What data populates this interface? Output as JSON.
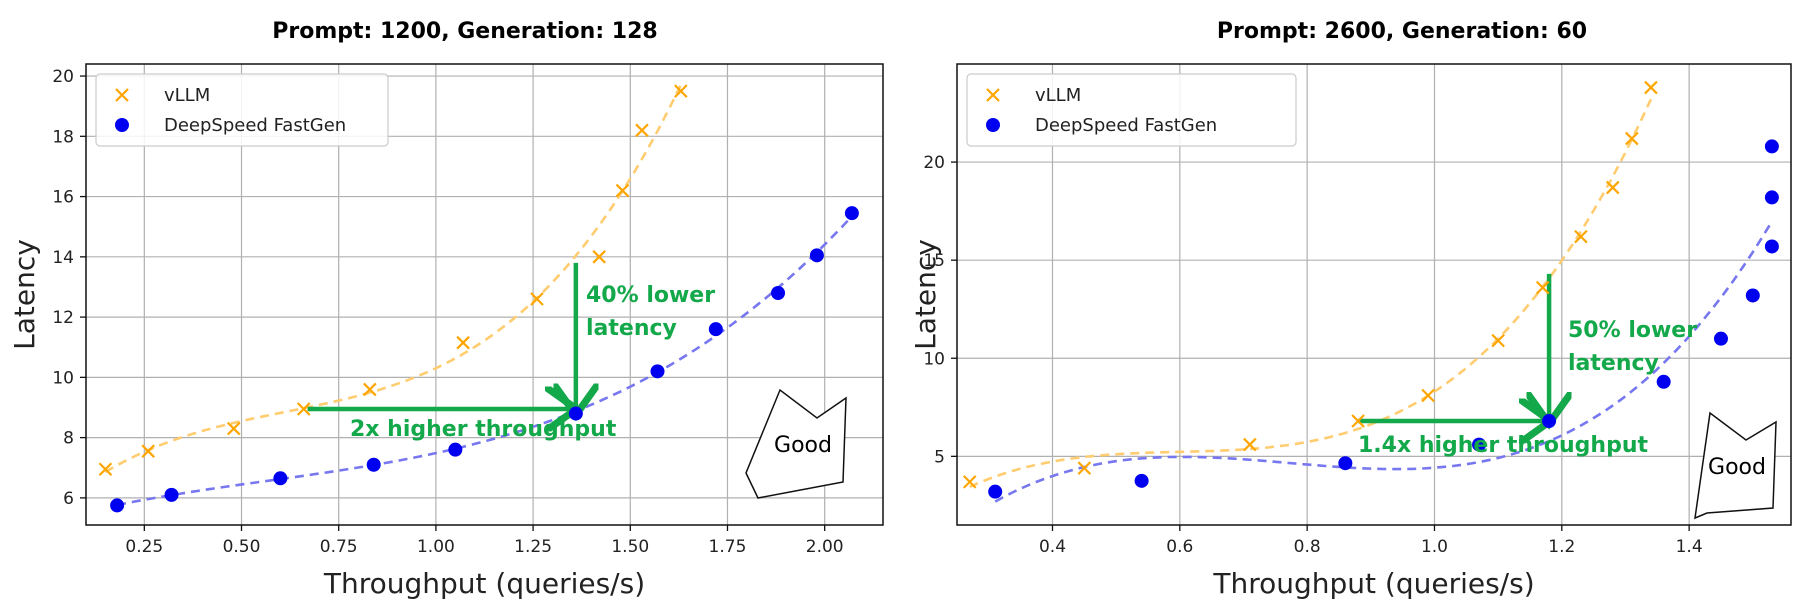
{
  "chart_data": [
    {
      "type": "scatter",
      "title": "Prompt: 1200, Generation: 128",
      "xlabel": "Throughput (queries/s)",
      "ylabel": "Latency",
      "xlim": [
        0.1,
        2.15
      ],
      "ylim": [
        5.1,
        20.4
      ],
      "xticks": [
        0.25,
        0.5,
        0.75,
        1.0,
        1.25,
        1.5,
        1.75,
        2.0
      ],
      "xtick_labels": [
        "0.25",
        "0.50",
        "0.75",
        "1.00",
        "1.25",
        "1.50",
        "1.75",
        "2.00"
      ],
      "yticks": [
        6,
        8,
        10,
        12,
        14,
        16,
        18,
        20
      ],
      "ytick_labels": [
        "6",
        "8",
        "10",
        "12",
        "14",
        "16",
        "18",
        "20"
      ],
      "grid": true,
      "legend": "top-left",
      "series": [
        {
          "name": "vLLM",
          "marker": "x",
          "color": "#FFA500",
          "fit_color": "#FFCC70",
          "x": [
            0.15,
            0.26,
            0.48,
            0.66,
            0.83,
            1.07,
            1.26,
            1.42,
            1.48,
            1.53,
            1.63
          ],
          "y": [
            6.95,
            7.55,
            8.3,
            8.95,
            9.6,
            11.15,
            12.6,
            14.0,
            16.2,
            18.2,
            19.5
          ]
        },
        {
          "name": "DeepSpeed FastGen",
          "marker": "o",
          "color": "#0000F0",
          "fit_color": "#7777F0",
          "x": [
            0.18,
            0.32,
            0.6,
            0.84,
            1.05,
            1.36,
            1.57,
            1.72,
            1.88,
            1.98,
            2.07
          ],
          "y": [
            5.75,
            6.1,
            6.65,
            7.1,
            7.6,
            8.8,
            10.2,
            11.6,
            12.8,
            14.05,
            15.45
          ]
        }
      ],
      "annotations": {
        "vertical_label": [
          "40% lower",
          "latency"
        ],
        "horizontal_label": "2x higher throughput",
        "vertical_arrow": {
          "x": 1.36,
          "y_from": 13.8,
          "y_to": 8.9
        },
        "horizontal_arrow": {
          "y": 8.95,
          "x_from": 0.67,
          "x_to": 1.35
        },
        "good_label": "Good"
      }
    },
    {
      "type": "scatter",
      "title": "Prompt: 2600, Generation: 60",
      "xlabel": "Throughput (queries/s)",
      "ylabel": "Latency",
      "xlim": [
        0.25,
        1.56
      ],
      "ylim": [
        1.5,
        25.0
      ],
      "xticks": [
        0.4,
        0.6,
        0.8,
        1.0,
        1.2,
        1.4
      ],
      "xtick_labels": [
        "0.4",
        "0.6",
        "0.8",
        "1.0",
        "1.2",
        "1.4"
      ],
      "yticks": [
        5,
        10,
        15,
        20
      ],
      "ytick_labels": [
        "5",
        "10",
        "15",
        "20"
      ],
      "grid": true,
      "legend": "top-left",
      "series": [
        {
          "name": "vLLM",
          "marker": "x",
          "color": "#FFA500",
          "fit_color": "#FFCC70",
          "x": [
            0.27,
            0.45,
            0.71,
            0.88,
            0.99,
            1.1,
            1.17,
            1.23,
            1.28,
            1.31,
            1.34
          ],
          "y": [
            3.7,
            4.4,
            5.6,
            6.8,
            8.1,
            10.9,
            13.6,
            16.2,
            18.7,
            21.2,
            23.8
          ]
        },
        {
          "name": "DeepSpeed FastGen",
          "marker": "o",
          "color": "#0000F0",
          "fit_color": "#7777F0",
          "x": [
            0.31,
            0.54,
            0.86,
            1.07,
            1.18,
            1.36,
            1.45,
            1.5,
            1.53,
            1.53,
            1.53
          ],
          "y": [
            3.2,
            3.75,
            4.65,
            5.6,
            6.8,
            8.8,
            11.0,
            13.2,
            15.7,
            18.2,
            20.8
          ]
        }
      ],
      "annotations": {
        "vertical_label": [
          "50% lower",
          "latency"
        ],
        "horizontal_label": "1.4x higher throughput",
        "vertical_arrow": {
          "x": 1.18,
          "y_from": 14.3,
          "y_to": 6.9
        },
        "horizontal_arrow": {
          "y": 6.8,
          "x_from": 0.88,
          "x_to": 1.175
        },
        "good_label": "Good"
      }
    }
  ]
}
